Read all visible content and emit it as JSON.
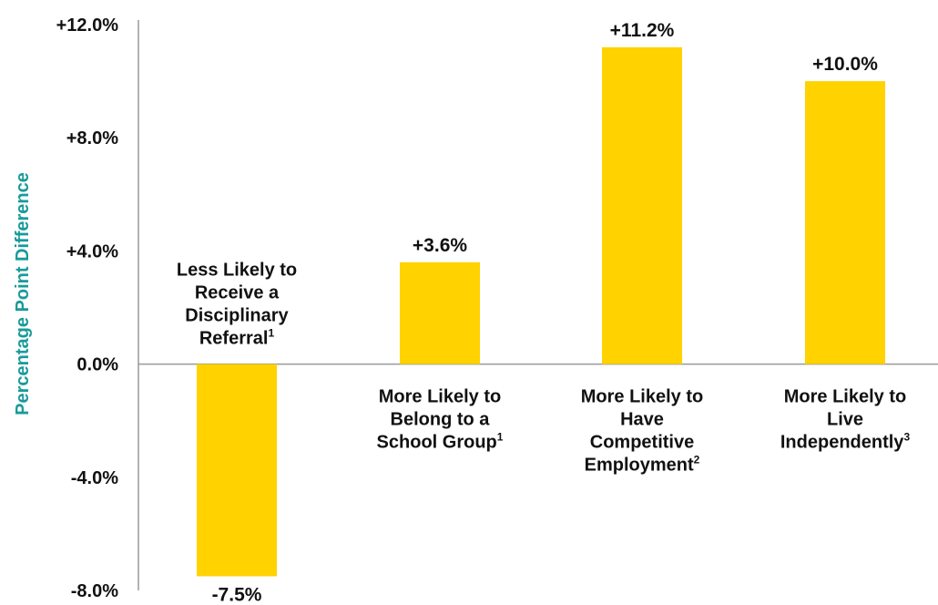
{
  "chart_data": {
    "type": "bar",
    "title": "",
    "xlabel": "",
    "ylabel": "Percentage Point Difference",
    "ylim": [
      -8,
      12
    ],
    "yticks": [
      12,
      8,
      4,
      0,
      -4,
      -8
    ],
    "ytick_labels": [
      "+12.0%",
      "+8.0%",
      "+4.0%",
      "0.0%",
      "-4.0%",
      "-8.0%"
    ],
    "categories": [
      {
        "lines": [
          "Less Likely to",
          "Receive a",
          "Disciplinary",
          "Referral"
        ],
        "sup": "1"
      },
      {
        "lines": [
          "More Likely to",
          "Belong to a",
          "School Group"
        ],
        "sup": "1"
      },
      {
        "lines": [
          "More Likely to",
          "Have",
          "Competitive",
          "Employment"
        ],
        "sup": "2"
      },
      {
        "lines": [
          "More Likely to",
          "Live",
          "Independently"
        ],
        "sup": "3"
      }
    ],
    "values": [
      -7.5,
      3.6,
      11.2,
      10.0
    ],
    "data_labels": [
      "-7.5%",
      "+3.6%",
      "+11.2%",
      "+10.0%"
    ],
    "grid": false,
    "legend": "none",
    "colors": {
      "bar": "#FFD200",
      "axis": "#9a9a9a",
      "ylabel": "#1a9a9a",
      "text": "#111111"
    }
  }
}
